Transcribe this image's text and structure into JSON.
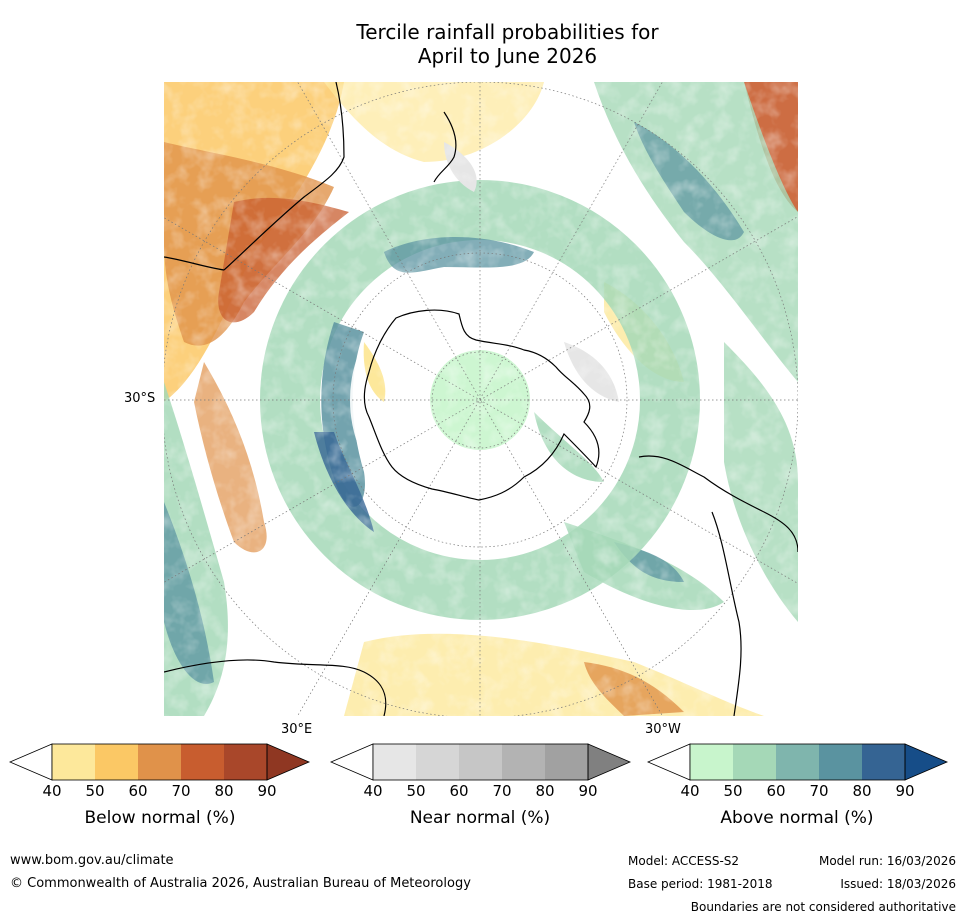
{
  "title_line1": "Tercile rainfall probabilities for",
  "title_line2": "April to June 2026",
  "map": {
    "lat_label": "30°S",
    "lon_label_east": "30°E",
    "lon_label_west": "30°W"
  },
  "colorbars": [
    {
      "name": "below",
      "title": "Below normal (%)",
      "ticks": [
        "40",
        "50",
        "60",
        "70",
        "80",
        "90"
      ],
      "colors": [
        "#fde89b",
        "#fbc865",
        "#e0924a",
        "#c85d2f",
        "#a9472a",
        "#8f3722"
      ]
    },
    {
      "name": "near",
      "title": "Near normal (%)",
      "ticks": [
        "40",
        "50",
        "60",
        "70",
        "80",
        "90"
      ],
      "colors": [
        "#e6e6e6",
        "#d6d6d6",
        "#c6c6c6",
        "#b3b3b3",
        "#a1a1a1",
        "#808080"
      ]
    },
    {
      "name": "above",
      "title": "Above normal (%)",
      "ticks": [
        "40",
        "50",
        "60",
        "70",
        "80",
        "90"
      ],
      "colors": [
        "#c8f5cc",
        "#a5d8b7",
        "#7fb5ad",
        "#5a93a0",
        "#356493",
        "#164d88"
      ]
    }
  ],
  "footer": {
    "website": "www.bom.gov.au/climate",
    "copyright": "© Commonwealth of Australia 2026, Australian Bureau of Meteorology",
    "model": "Model: ACCESS-S2",
    "model_run": "Model run: 16/03/2026",
    "base_period": "Base period: 1981-2018",
    "issued": "Issued: 18/03/2026",
    "disclaimer": "Boundaries are not considered authoritative"
  }
}
